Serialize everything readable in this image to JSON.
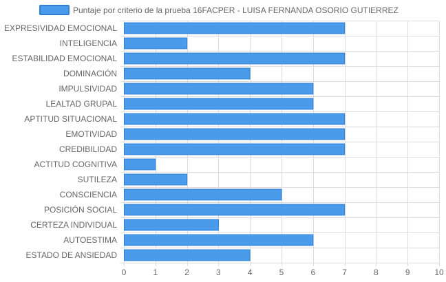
{
  "chart_data": {
    "type": "bar",
    "orientation": "horizontal",
    "categories": [
      "EXPRESIVIDAD EMOCIONAL",
      "INTELIGENCIA",
      "ESTABILIDAD EMOCIONAL",
      "DOMINACIÓN",
      "IMPULSIVIDAD",
      "LEALTAD GRUPAL",
      "APTITUD SITUACIONAL",
      "EMOTIVIDAD",
      "CREDIBILIDAD",
      "ACTITUD COGNITIVA",
      "SUTILEZA",
      "CONSCIENCIA",
      "POSICIÓN SOCIAL",
      "CERTEZA INDIVIDUAL",
      "AUTOESTIMA",
      "ESTADO DE ANSIEDAD"
    ],
    "series": [
      {
        "name": "Puntaje por criterio de la prueba 16FACPER - LUISA FERNANDA OSORIO GUTIERREZ",
        "values": [
          7,
          2,
          7,
          4,
          6,
          6,
          7,
          7,
          7,
          1,
          2,
          5,
          7,
          3,
          6,
          4
        ]
      }
    ],
    "xlim": [
      0,
      10
    ],
    "x_ticks": [
      "0",
      "1",
      "2",
      "3",
      "4",
      "5",
      "6",
      "7",
      "8",
      "9",
      "10"
    ],
    "grid": true,
    "legend_position": "top",
    "colors": {
      "bar_fill": "#4a9bea",
      "bar_border": "#2f7fd8",
      "grid": "#dddddd"
    }
  }
}
